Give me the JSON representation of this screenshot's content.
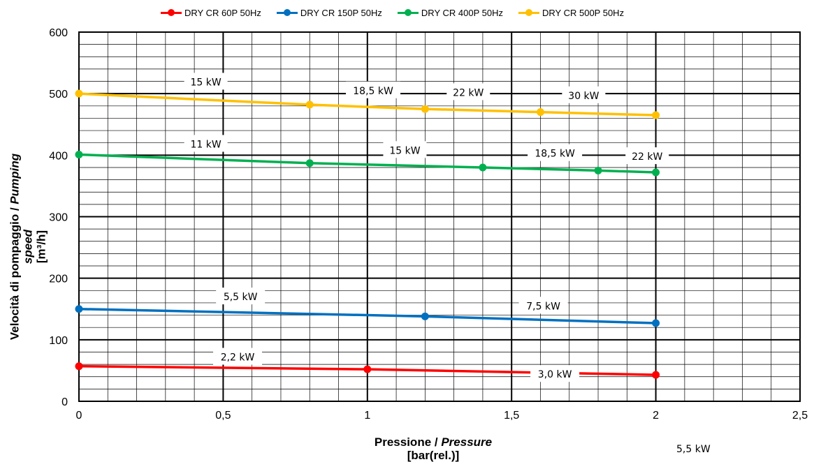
{
  "chart_data": {
    "type": "line",
    "xlabel_main": "Pressione / ",
    "xlabel_italic": "Pressure",
    "xlabel_unit": "[bar(rel.)]",
    "ylabel_main": "Velocità di pompaggio / ",
    "ylabel_italic": "Pumping speed",
    "ylabel_unit": "[m³/h]",
    "xlim": [
      0,
      2.5
    ],
    "ylim": [
      0,
      600
    ],
    "x_ticks": [
      "0",
      "0,5",
      "1",
      "1,5",
      "2",
      "2,5"
    ],
    "y_ticks": [
      "0",
      "100",
      "200",
      "300",
      "400",
      "500",
      "600"
    ],
    "grid": true,
    "legend_position": "top",
    "series": [
      {
        "name": "DRY CR 60P 50Hz",
        "color": "#ff0000",
        "points": [
          [
            0,
            57
          ],
          [
            1,
            52
          ],
          [
            2,
            43
          ]
        ],
        "labels": [
          "2,2 kW",
          "3,0 kW"
        ]
      },
      {
        "name": "DRY CR 150P 50Hz",
        "color": "#0070c0",
        "points": [
          [
            0,
            150
          ],
          [
            1.2,
            138
          ],
          [
            2,
            127
          ]
        ],
        "labels": [
          "5,5 kW",
          "7,5 kW"
        ]
      },
      {
        "name": "DRY CR 400P 50Hz",
        "color": "#00b050",
        "points": [
          [
            0,
            401
          ],
          [
            0.8,
            387
          ],
          [
            1.4,
            380
          ],
          [
            1.8,
            375
          ],
          [
            2,
            372
          ]
        ],
        "labels": [
          "11 kW",
          "15 kW",
          "18,5 kW",
          "22 kW"
        ]
      },
      {
        "name": "DRY CR 500P 50Hz",
        "color": "#ffc000",
        "points": [
          [
            0,
            500
          ],
          [
            0.8,
            482
          ],
          [
            1.2,
            475
          ],
          [
            1.6,
            470
          ],
          [
            2,
            465
          ]
        ],
        "labels": [
          "15 kW",
          "18,5 kW",
          "22 kW",
          "30 kW"
        ]
      }
    ],
    "stray_label": "5,5 kW"
  }
}
